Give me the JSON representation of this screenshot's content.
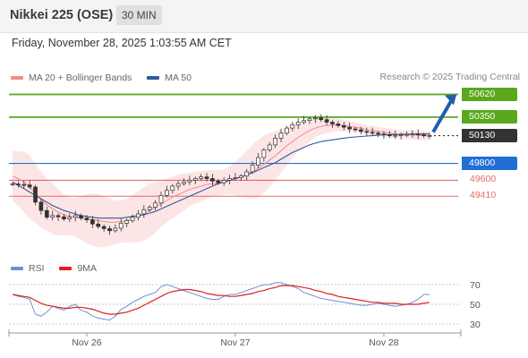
{
  "header": {
    "title": "Nikkei 225 (OSE)",
    "interval": "30 MIN"
  },
  "datetime": "Friday, November 28, 2025 1:03:55 AM CET",
  "legend": {
    "items": [
      {
        "label": "MA 20 + Bollinger Bands",
        "color": "#f28b8b"
      },
      {
        "label": "MA 50",
        "color": "#2d5a9e"
      }
    ],
    "credit": "Research © 2025 Trading Central"
  },
  "colors": {
    "resistance": "#5aa81e",
    "support_main": "#1f6fd6",
    "support_minor": "#e36b6b",
    "current": "#333333",
    "arrow": "#1f5fa8",
    "candle": "#333333",
    "bollinger_fill": "#fbe0e0",
    "ma20": "#f08a8a",
    "ma50": "#2d5a9e",
    "rsi": "#6f8fd8",
    "rsi_ma": "#e02020"
  },
  "chart_data": {
    "type": "candlestick",
    "price_levels": [
      {
        "label": "50620",
        "value": 50620,
        "kind": "resistance",
        "style": "box"
      },
      {
        "label": "50350",
        "value": 50350,
        "kind": "resistance",
        "style": "box"
      },
      {
        "label": "50130",
        "value": 50130,
        "kind": "current",
        "style": "box"
      },
      {
        "label": "49800",
        "value": 49800,
        "kind": "support_main",
        "style": "box"
      },
      {
        "label": "49600",
        "value": 49600,
        "kind": "support_minor",
        "style": "text"
      },
      {
        "label": "49410",
        "value": 49410,
        "kind": "support_minor",
        "style": "text"
      }
    ],
    "ylim": [
      48700,
      50700
    ],
    "close": [
      49555,
      49550,
      49545,
      49520,
      49340,
      49240,
      49160,
      49180,
      49165,
      49140,
      49160,
      49180,
      49150,
      49130,
      49080,
      49050,
      49025,
      49000,
      49030,
      49090,
      49120,
      49160,
      49200,
      49250,
      49280,
      49330,
      49420,
      49480,
      49530,
      49560,
      49580,
      49600,
      49620,
      49640,
      49620,
      49590,
      49570,
      49600,
      49620,
      49630,
      49650,
      49700,
      49780,
      49870,
      49960,
      50020,
      50100,
      50160,
      50220,
      50260,
      50290,
      50310,
      50330,
      50340,
      50320,
      50290,
      50270,
      50250,
      50230,
      50210,
      50200,
      50180,
      50170,
      50160,
      50150,
      50140,
      50130,
      50135,
      50140,
      50145,
      50150,
      50140,
      50130,
      50130
    ],
    "ma20": [
      49650,
      49620,
      49580,
      49520,
      49440,
      49370,
      49310,
      49260,
      49220,
      49190,
      49170,
      49160,
      49150,
      49140,
      49130,
      49120,
      49110,
      49100,
      49100,
      49110,
      49120,
      49140,
      49170,
      49200,
      49240,
      49280,
      49320,
      49360,
      49400,
      49430,
      49460,
      49490,
      49510,
      49530,
      49550,
      49560,
      49570,
      49580,
      49600,
      49620,
      49640,
      49670,
      49700,
      49740,
      49790,
      49840,
      49890,
      49950,
      50010,
      50060,
      50110,
      50150,
      50190,
      50220,
      50240,
      50250,
      50255,
      50255,
      50250,
      50240,
      50230,
      50220,
      50200,
      50190,
      50180,
      50170,
      50160,
      50150,
      50145,
      50140,
      50140,
      50135,
      50130,
      50130
    ],
    "ma50": [
      49580,
      49540,
      49500,
      49460,
      49420,
      49380,
      49340,
      49300,
      49270,
      49240,
      49220,
      49200,
      49180,
      49170,
      49160,
      49150,
      49150,
      49150,
      49150,
      49150,
      49160,
      49170,
      49180,
      49190,
      49210,
      49230,
      49260,
      49290,
      49320,
      49350,
      49380,
      49410,
      49440,
      49470,
      49500,
      49530,
      49560,
      49580,
      49600,
      49620,
      49640,
      49660,
      49690,
      49720,
      49750,
      49780,
      49810,
      49850,
      49890,
      49930,
      49960,
      49990,
      50020,
      50040,
      50060,
      50070,
      50080,
      50090,
      50100,
      50110,
      50115,
      50120,
      50125,
      50130,
      50135,
      50140,
      50142,
      50145,
      50147,
      50148,
      50149,
      50150,
      50150,
      50150
    ],
    "bb_width": [
      300,
      320,
      360,
      380,
      350,
      330,
      310,
      300,
      280,
      240,
      220,
      230,
      260,
      290,
      310,
      320,
      300,
      280,
      260,
      250,
      260,
      280,
      300,
      320,
      320,
      300,
      270,
      260,
      250,
      240,
      220,
      200,
      190,
      180,
      170,
      160,
      150,
      150,
      170,
      200,
      240,
      280,
      320,
      340,
      340,
      320,
      290,
      260,
      230,
      200,
      170,
      150,
      130,
      110,
      100,
      90,
      80,
      75,
      70,
      65,
      60,
      55,
      55,
      55,
      55,
      55,
      55,
      55,
      55,
      55,
      55,
      55,
      55,
      55
    ],
    "rsi": [
      60,
      58,
      57,
      55,
      40,
      38,
      42,
      48,
      46,
      44,
      48,
      50,
      44,
      42,
      38,
      36,
      35,
      34,
      38,
      45,
      48,
      52,
      55,
      58,
      60,
      62,
      68,
      70,
      68,
      66,
      64,
      62,
      60,
      58,
      56,
      55,
      55,
      58,
      60,
      60,
      62,
      64,
      66,
      68,
      70,
      70,
      72,
      72,
      70,
      68,
      66,
      62,
      60,
      58,
      56,
      55,
      54,
      53,
      52,
      51,
      50,
      49,
      49,
      50,
      51,
      50,
      49,
      48,
      49,
      50,
      52,
      55,
      60,
      60
    ],
    "rsi_ma": [
      60,
      59,
      58,
      57,
      54,
      51,
      49,
      48,
      47,
      46,
      46,
      47,
      47,
      46,
      45,
      43,
      41,
      40,
      40,
      41,
      42,
      44,
      46,
      49,
      52,
      55,
      58,
      61,
      63,
      64,
      65,
      65,
      64,
      63,
      61,
      60,
      59,
      59,
      58,
      58,
      59,
      60,
      61,
      63,
      64,
      66,
      67,
      69,
      69,
      69,
      68,
      67,
      66,
      64,
      63,
      61,
      60,
      58,
      57,
      56,
      55,
      54,
      53,
      52,
      52,
      51,
      51,
      51,
      50,
      50,
      50,
      50,
      51,
      52
    ],
    "rsi_levels": [
      "70",
      "50",
      "30"
    ],
    "x_labels": [
      {
        "label": "Nov 26",
        "index": 13
      },
      {
        "label": "Nov 27",
        "index": 39
      },
      {
        "label": "Nov 28",
        "index": 65
      }
    ]
  },
  "rsi_legend": {
    "items": [
      {
        "label": "RSI",
        "color": "#6f8fd8"
      },
      {
        "label": "9MA",
        "color": "#e02020"
      }
    ]
  }
}
